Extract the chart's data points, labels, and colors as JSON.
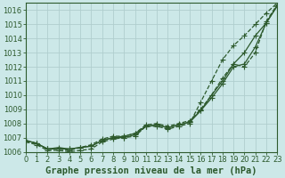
{
  "xlabel": "Graphe pression niveau de la mer (hPa)",
  "background_color": "#cce8e8",
  "grid_color": "#b0cece",
  "line_color": "#2d5a2d",
  "x_ticks": [
    0,
    1,
    2,
    3,
    4,
    5,
    6,
    7,
    8,
    9,
    10,
    11,
    12,
    13,
    14,
    15,
    16,
    17,
    18,
    19,
    20,
    21,
    22,
    23
  ],
  "xlim": [
    0,
    23
  ],
  "ylim": [
    1006.0,
    1016.5
  ],
  "y_ticks": [
    1006,
    1007,
    1008,
    1009,
    1010,
    1011,
    1012,
    1013,
    1014,
    1015,
    1016
  ],
  "series": [
    {
      "y": [
        1006.8,
        1006.6,
        1006.2,
        1006.3,
        1006.2,
        1006.3,
        1006.4,
        1006.8,
        1007.0,
        1007.1,
        1007.3,
        1007.8,
        1007.9,
        1007.7,
        1007.9,
        1008.1,
        1008.9,
        1010.0,
        1011.0,
        1012.2,
        1013.0,
        1014.2,
        1015.1,
        1016.3
      ],
      "style": "-",
      "marker": "+"
    },
    {
      "y": [
        1006.8,
        1006.6,
        1006.2,
        1006.2,
        1006.2,
        1006.3,
        1006.4,
        1006.8,
        1007.0,
        1007.0,
        1007.2,
        1007.8,
        1007.9,
        1007.7,
        1007.9,
        1008.1,
        1008.9,
        1009.8,
        1010.8,
        1012.0,
        1012.2,
        1013.4,
        1015.1,
        1016.3
      ],
      "style": "-",
      "marker": "+"
    },
    {
      "y": [
        1006.8,
        1006.6,
        1006.2,
        1006.2,
        1006.1,
        1006.3,
        1006.5,
        1006.9,
        1007.1,
        1007.1,
        1007.3,
        1007.9,
        1008.0,
        1007.8,
        1008.0,
        1008.2,
        1009.0,
        1010.0,
        1011.2,
        1012.2,
        1012.0,
        1013.0,
        1015.2,
        1016.4
      ],
      "style": "--",
      "marker": "+"
    },
    {
      "y": [
        1006.7,
        1006.5,
        1006.1,
        1006.1,
        1006.0,
        1006.1,
        1006.2,
        1006.7,
        1006.9,
        1007.0,
        1007.1,
        1007.8,
        1007.8,
        1007.6,
        1007.8,
        1008.0,
        1009.5,
        1011.0,
        1012.5,
        1013.5,
        1014.2,
        1015.0,
        1015.8,
        1016.5
      ],
      "style": "--",
      "marker": "+"
    }
  ],
  "markersize": 4,
  "linewidth": 0.9,
  "xlabel_fontsize": 7.5,
  "tick_fontsize": 6
}
